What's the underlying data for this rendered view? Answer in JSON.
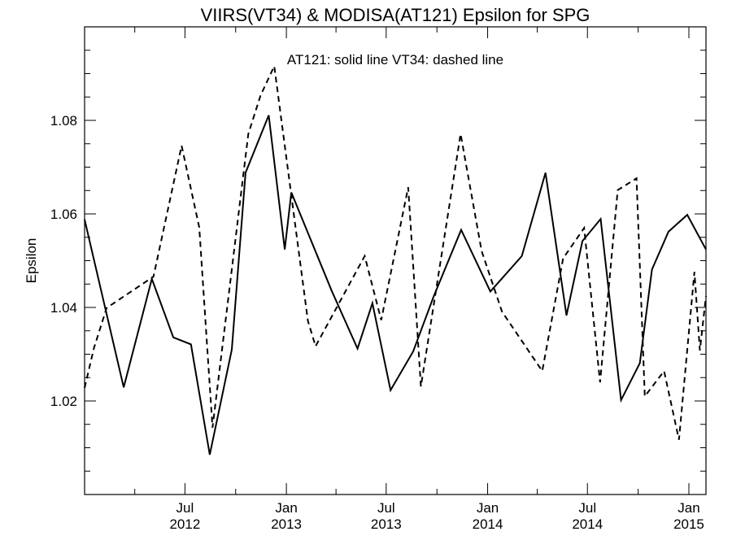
{
  "chart_data": {
    "type": "line",
    "title": "VIIRS(VT34) & MODISA(AT121)  Epsilon for SPG",
    "ylabel": "Epsilon",
    "xlabel": "",
    "annotation": "AT121: solid line   VT34: dashed line",
    "xlim": [
      "2012-01-01",
      "2015-02-01"
    ],
    "ylim": [
      1.0,
      1.1
    ],
    "y_ticks": [
      "1.02",
      "1.04",
      "1.06",
      "1.08"
    ],
    "y_tick_values": [
      1.02,
      1.04,
      1.06,
      1.08
    ],
    "x_ticks": [
      {
        "date": "2012-07-01",
        "month": "Jul",
        "year": "2012"
      },
      {
        "date": "2013-01-01",
        "month": "Jan",
        "year": "2013"
      },
      {
        "date": "2013-07-01",
        "month": "Jul",
        "year": "2013"
      },
      {
        "date": "2014-01-01",
        "month": "Jan",
        "year": "2014"
      },
      {
        "date": "2014-07-01",
        "month": "Jul",
        "year": "2014"
      },
      {
        "date": "2015-01-01",
        "month": "Jan",
        "year": "2015"
      }
    ],
    "grid": false,
    "series": [
      {
        "name": "AT121",
        "style": "solid",
        "color": "#000000",
        "points": [
          [
            "2012-01-01",
            1.0588
          ],
          [
            "2012-03-12",
            1.0229
          ],
          [
            "2012-05-02",
            1.0461
          ],
          [
            "2012-06-10",
            1.0336
          ],
          [
            "2012-07-12",
            1.0321
          ],
          [
            "2012-08-15",
            1.0085
          ],
          [
            "2012-09-24",
            1.031
          ],
          [
            "2012-10-19",
            1.0688
          ],
          [
            "2012-11-30",
            1.0811
          ],
          [
            "2012-12-29",
            1.0524
          ],
          [
            "2013-01-10",
            1.0646
          ],
          [
            "2013-03-24",
            1.0436
          ],
          [
            "2013-05-10",
            1.0312
          ],
          [
            "2013-06-06",
            1.0409
          ],
          [
            "2013-07-09",
            1.0223
          ],
          [
            "2013-08-19",
            1.0306
          ],
          [
            "2013-09-25",
            1.0423
          ],
          [
            "2013-11-14",
            1.0566
          ],
          [
            "2014-01-06",
            1.0434
          ],
          [
            "2014-03-04",
            1.051
          ],
          [
            "2014-04-16",
            1.0688
          ],
          [
            "2014-05-24",
            1.0383
          ],
          [
            "2014-06-22",
            1.0542
          ],
          [
            "2014-07-25",
            1.0589
          ],
          [
            "2014-08-31",
            1.0202
          ],
          [
            "2014-10-04",
            1.0281
          ],
          [
            "2014-10-26",
            1.0481
          ],
          [
            "2014-11-25",
            1.0562
          ],
          [
            "2014-12-29",
            1.0598
          ],
          [
            "2015-02-01",
            1.0524
          ]
        ]
      },
      {
        "name": "VT34",
        "style": "dashed",
        "color": "#000000",
        "points": [
          [
            "2012-01-01",
            1.0228
          ],
          [
            "2012-01-18",
            1.0313
          ],
          [
            "2012-02-10",
            1.0399
          ],
          [
            "2012-05-05",
            1.0466
          ],
          [
            "2012-06-25",
            1.0746
          ],
          [
            "2012-07-27",
            1.0571
          ],
          [
            "2012-08-20",
            1.0143
          ],
          [
            "2012-10-24",
            1.0771
          ],
          [
            "2012-11-15",
            1.0853
          ],
          [
            "2012-12-10",
            1.0916
          ],
          [
            "2013-02-09",
            1.0371
          ],
          [
            "2013-02-23",
            1.0317
          ],
          [
            "2013-05-23",
            1.051
          ],
          [
            "2013-06-22",
            1.0373
          ],
          [
            "2013-08-10",
            1.0657
          ],
          [
            "2013-09-02",
            1.0231
          ],
          [
            "2013-11-13",
            1.0771
          ],
          [
            "2013-12-21",
            1.0521
          ],
          [
            "2014-01-27",
            1.0391
          ],
          [
            "2014-04-10",
            1.0264
          ],
          [
            "2014-05-18",
            1.0505
          ],
          [
            "2014-06-25",
            1.057
          ],
          [
            "2014-07-24",
            1.024
          ],
          [
            "2014-08-25",
            1.0651
          ],
          [
            "2014-09-28",
            1.0676
          ],
          [
            "2014-10-13",
            1.021
          ],
          [
            "2014-11-17",
            1.0264
          ],
          [
            "2014-12-14",
            1.0117
          ],
          [
            "2015-01-11",
            1.0476
          ],
          [
            "2015-01-21",
            1.0308
          ],
          [
            "2015-02-01",
            1.0424
          ]
        ]
      }
    ]
  }
}
